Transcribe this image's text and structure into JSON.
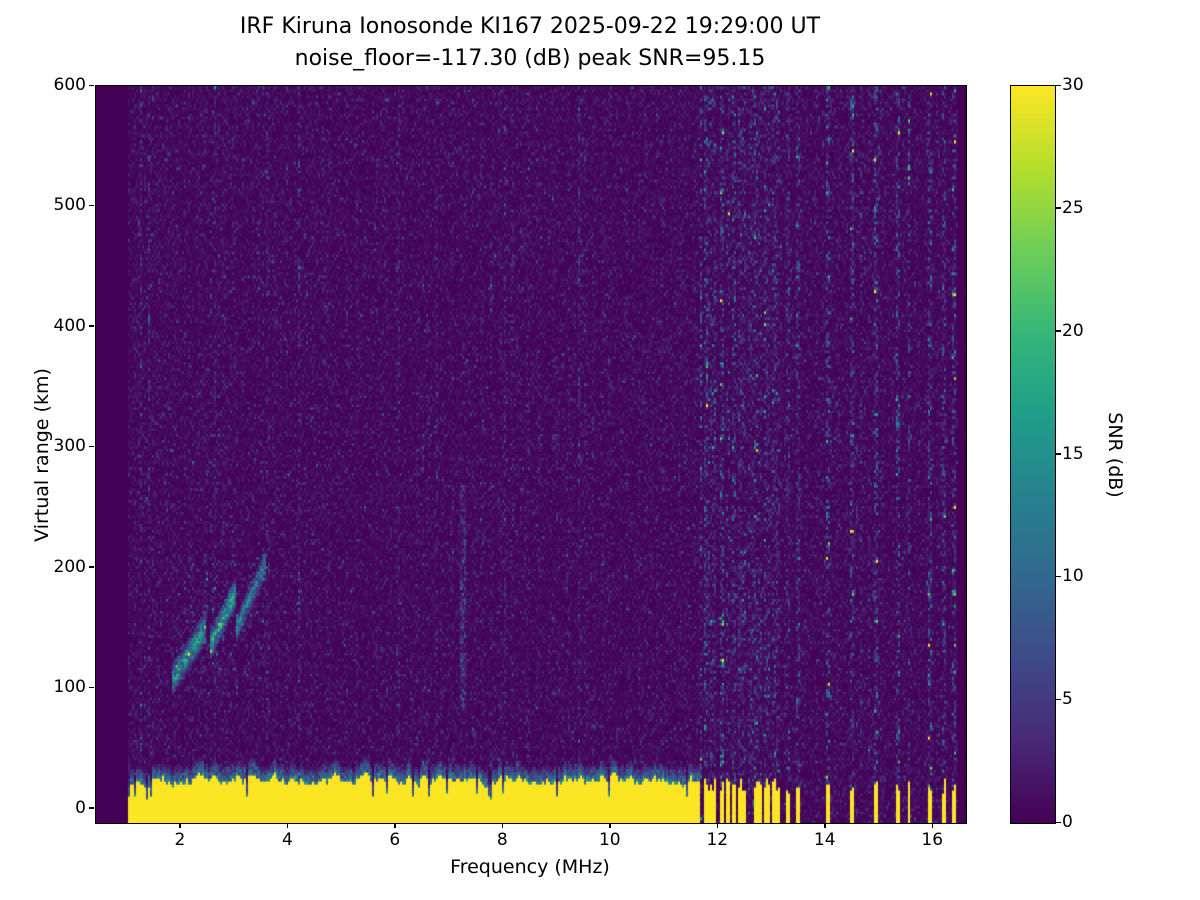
{
  "figure": {
    "title_line1": "IRF Kiruna Ionosonde KI167 2025-09-22 19:29:00  UT",
    "title_line2": "noise_floor=-117.30 (dB) peak SNR=95.15"
  },
  "chart_data": {
    "type": "heatmap",
    "title": "IRF Kiruna Ionosonde KI167 2025-09-22 19:29:00  UT",
    "subtitle": "noise_floor=-117.30 (dB) peak SNR=95.15",
    "station": "IRF Kiruna Ionosonde KI167",
    "timestamp_ut": "2025-09-22 19:29:00",
    "noise_floor_db": -117.3,
    "peak_snr_db": 95.15,
    "xlabel": "Frequency (MHz)",
    "ylabel": "Virtual range (km)",
    "x_range": [
      0.42,
      16.61
    ],
    "y_range": [
      -12,
      600
    ],
    "x_ticks": [
      2,
      4,
      6,
      8,
      10,
      12,
      14,
      16
    ],
    "y_ticks": [
      0,
      100,
      200,
      300,
      400,
      500,
      600
    ],
    "colorbar": {
      "label": "SNR (dB)",
      "min": 0,
      "max": 30,
      "ticks": [
        0,
        5,
        10,
        15,
        20,
        25,
        30
      ],
      "colormap": "viridis",
      "colormap_stops": [
        "#440154",
        "#482878",
        "#3e4a89",
        "#31688e",
        "#26828e",
        "#1f9e89",
        "#35b779",
        "#6ece58",
        "#b5de2b",
        "#fde725"
      ]
    },
    "features": {
      "seed": 167,
      "data_freq_start_mhz": 1.0,
      "data_freq_end_mhz": 16.45,
      "background_noise_mean_db": 1.1,
      "ground_clutter_band": {
        "freq_mhz": [
          1.0,
          11.65
        ],
        "top_km_mean": 24,
        "top_km_jitter": 18,
        "snr_db": 30
      },
      "echo_traces": [
        {
          "f0": 1.85,
          "f1": 2.45,
          "r0": 108,
          "r1": 150,
          "width_km": 14,
          "amp_db": 15
        },
        {
          "f0": 2.55,
          "f1": 3.02,
          "r0": 136,
          "r1": 180,
          "width_km": 13,
          "amp_db": 17
        },
        {
          "f0": 3.02,
          "f1": 3.58,
          "r0": 148,
          "r1": 205,
          "width_km": 12,
          "amp_db": 12
        }
      ],
      "echo_speckle_region": {
        "freq_mhz": [
          1.9,
          3.6
        ],
        "range_km": [
          95,
          215
        ]
      },
      "faint_column_mhz": 7.25,
      "rfi_dense_range_mhz": [
        11.65,
        13.15
      ],
      "rfi_sparse_freqs_mhz": [
        13.3,
        13.5,
        14.05,
        14.5,
        14.95,
        15.35,
        15.55,
        15.95,
        16.2,
        16.4
      ]
    }
  }
}
